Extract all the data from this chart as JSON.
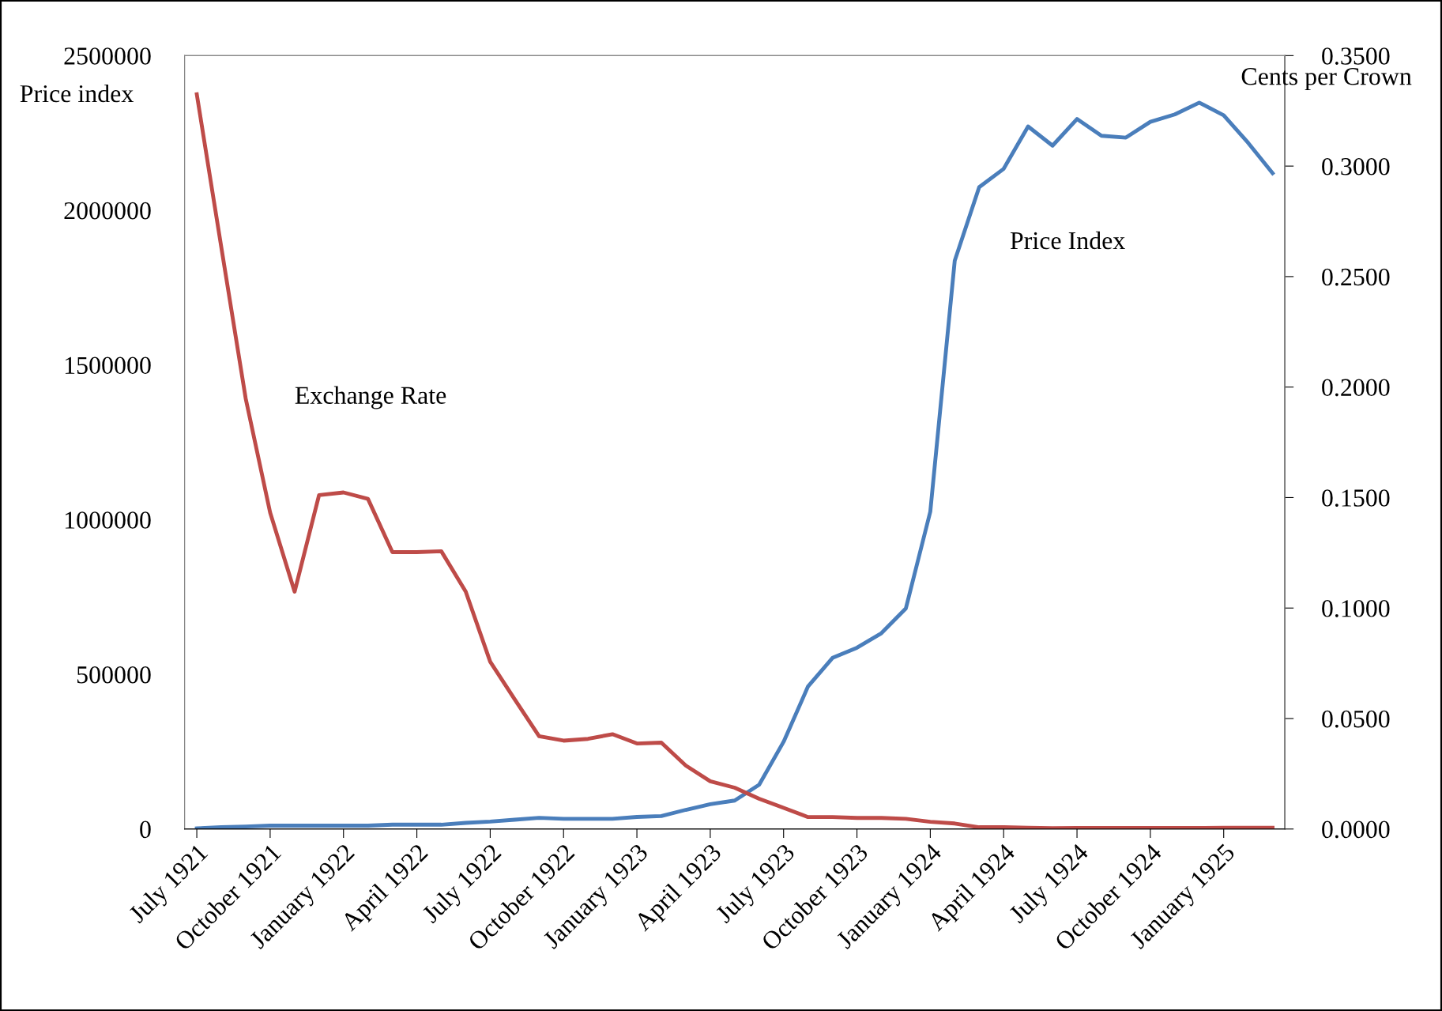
{
  "chart_data": {
    "type": "line",
    "ylabel": "Price index",
    "y2label": "Cents per Crown",
    "categories": [
      "July 1921",
      null,
      null,
      "October 1921",
      null,
      null,
      "January 1922",
      null,
      null,
      "April 1922",
      null,
      null,
      "July 1922",
      null,
      null,
      "October 1922",
      null,
      null,
      "January 1923",
      null,
      null,
      "April 1923",
      null,
      null,
      "July 1923",
      null,
      null,
      "October 1923",
      null,
      null,
      "January 1924",
      null,
      null,
      "April 1924",
      null,
      null,
      "July 1924",
      null,
      null,
      "October 1924",
      null,
      null,
      "January 1925",
      null,
      null
    ],
    "series": [
      {
        "name": "Price Index",
        "color": "#4a7ebb",
        "values": [
          2000,
          6000,
          8000,
          11000,
          11000,
          11000,
          11000,
          11000,
          14000,
          14000,
          14000,
          20000,
          24000,
          30000,
          36000,
          33000,
          33000,
          33000,
          39000,
          42000,
          62000,
          80000,
          92000,
          143000,
          282000,
          461000,
          553000,
          586000,
          633000,
          713000,
          1026000,
          1837000,
          2075000,
          2134000,
          2271000,
          2209000,
          2295000,
          2241000,
          2235000,
          2286000,
          2310000,
          2348000,
          2307000,
          2218000,
          2120000
        ]
      },
      {
        "name": "Exchange Rate",
        "color": "#be4b48",
        "axis": "y2",
        "values": [
          0.3325,
          0.2634,
          0.1948,
          0.1432,
          0.1074,
          0.1511,
          0.1523,
          0.1494,
          0.1253,
          0.1253,
          0.1257,
          0.1074,
          0.0757,
          0.0587,
          0.042,
          0.04,
          0.0408,
          0.0429,
          0.0387,
          0.0391,
          0.0287,
          0.0216,
          0.0187,
          0.0137,
          0.0096,
          0.0054,
          0.0054,
          0.005,
          0.005,
          0.0046,
          0.0033,
          0.0025,
          0.0008,
          0.0008,
          0.0006,
          0.0004,
          0.0005,
          0.0005,
          0.0005,
          0.0005,
          0.0005,
          0.0005,
          0.0006,
          0.0006,
          0.0006
        ]
      }
    ],
    "ylim": [
      0,
      2500000
    ],
    "yticks": [
      0,
      500000,
      1000000,
      1500000,
      2000000,
      2500000
    ],
    "y2lim": [
      0,
      0.35
    ],
    "y2ticks": [
      {
        "value": 0,
        "label": "0.0000"
      },
      {
        "value": 0.05,
        "label": "0.0500"
      },
      {
        "value": 0.1,
        "label": "0.1000"
      },
      {
        "value": 0.15,
        "label": "0.1500"
      },
      {
        "value": 0.2,
        "label": "0.2000"
      },
      {
        "value": 0.25,
        "label": "0.2500"
      },
      {
        "value": 0.3,
        "label": "0.3000"
      },
      {
        "value": 0.35,
        "label": "0.3500"
      }
    ],
    "grid": false,
    "legend": false,
    "marker": "none",
    "line_style": "solid"
  }
}
